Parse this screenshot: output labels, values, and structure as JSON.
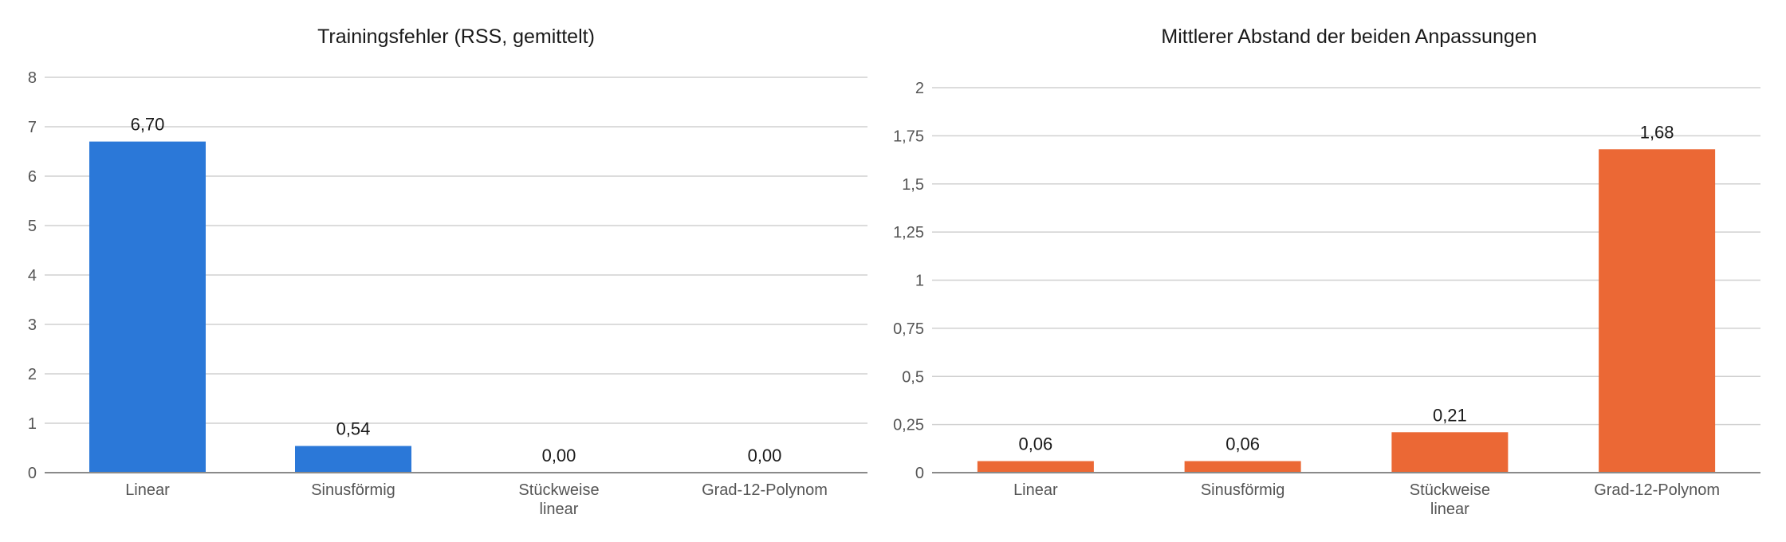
{
  "chart_data": [
    {
      "type": "bar",
      "title": "Trainingsfehler (RSS, gemittelt)",
      "xlabel": "",
      "ylabel": "",
      "categories": [
        [
          "Linear"
        ],
        [
          "Sinusförmig"
        ],
        [
          "Stückweise",
          "linear"
        ],
        [
          "Grad-12-Polynom"
        ]
      ],
      "values": [
        6.7,
        0.54,
        0.0,
        0.0
      ],
      "value_labels": [
        "6,70",
        "0,54",
        "0,00",
        "0,00"
      ],
      "ylim": [
        0,
        8
      ],
      "yticks": [
        0,
        1,
        2,
        3,
        4,
        5,
        6,
        7,
        8
      ],
      "ytick_labels": [
        "0",
        "1",
        "2",
        "3",
        "4",
        "5",
        "6",
        "7",
        "8"
      ],
      "grid": true,
      "legend": "none",
      "color": "#2b78d8"
    },
    {
      "type": "bar",
      "title": "Mittlerer Abstand der beiden Anpassungen",
      "xlabel": "",
      "ylabel": "",
      "categories": [
        [
          "Linear"
        ],
        [
          "Sinusförmig"
        ],
        [
          "Stückweise",
          "linear"
        ],
        [
          "Grad-12-Polynom"
        ]
      ],
      "values": [
        0.06,
        0.06,
        0.21,
        1.68
      ],
      "value_labels": [
        "0,06",
        "0,06",
        "0,21",
        "1,68"
      ],
      "ylim": [
        0,
        2
      ],
      "yticks": [
        0,
        0.25,
        0.5,
        0.75,
        1,
        1.25,
        1.5,
        1.75,
        2
      ],
      "ytick_labels": [
        "0",
        "0,25",
        "0,5",
        "0,75",
        "1",
        "1,25",
        "1,5",
        "1,75",
        "2"
      ],
      "grid": true,
      "legend": "none",
      "color": "#eb6835"
    }
  ]
}
